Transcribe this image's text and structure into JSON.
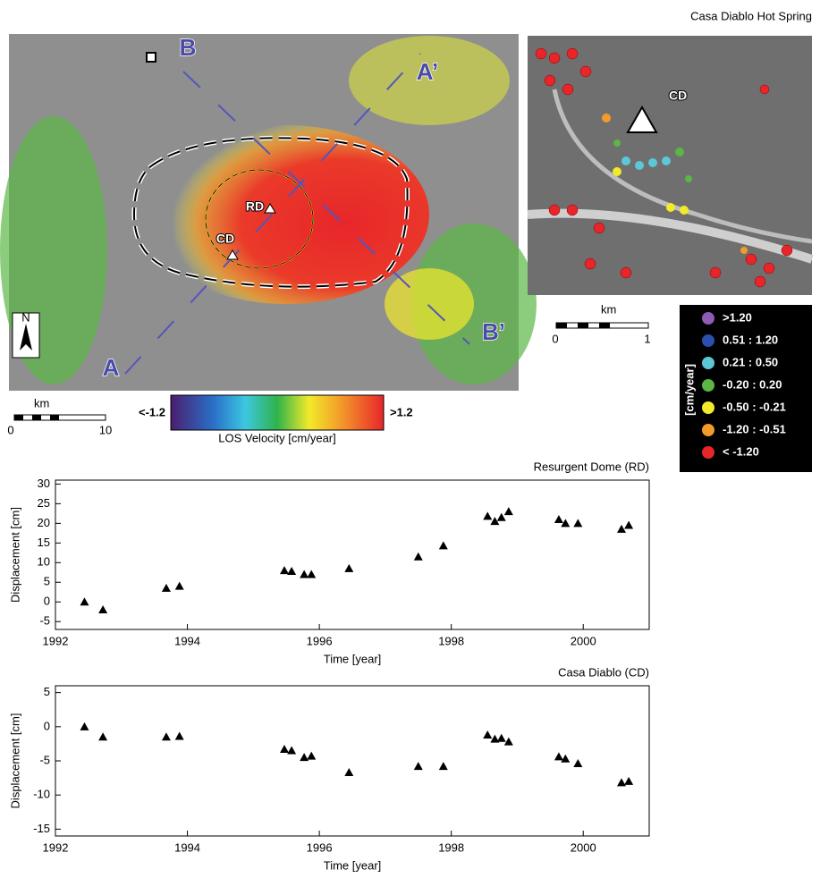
{
  "chart_data": [
    {
      "type": "scatter",
      "title": "Resurgent Dome (RD)",
      "x_label": "Time [year]",
      "y_label": "Displacement [cm]",
      "color": "#000000",
      "x": [
        1992.44,
        1992.72,
        1993.68,
        1993.88,
        1995.47,
        1995.58,
        1995.77,
        1995.88,
        1996.45,
        1997.5,
        1997.88,
        1998.55,
        1998.66,
        1998.76,
        1998.87,
        1999.63,
        1999.73,
        1999.92,
        2000.58,
        2000.69
      ],
      "values": [
        0,
        -2,
        3.5,
        4,
        8,
        7.8,
        7,
        7,
        8.5,
        11.5,
        14.3,
        21.8,
        20.5,
        21.5,
        23,
        21,
        20,
        20,
        18.5,
        19.5
      ],
      "xlim": [
        1992,
        2001
      ],
      "xticks": [
        1992,
        1994,
        1996,
        1998,
        2000
      ],
      "ylim": [
        -7,
        31
      ],
      "yticks": [
        -5,
        0,
        5,
        10,
        15,
        20,
        25,
        30
      ]
    },
    {
      "type": "scatter",
      "title": "Casa Diablo (CD)",
      "x_label": "Time [year]",
      "y_label": "Displacement [cm]",
      "color": "#000000",
      "x": [
        1992.44,
        1992.72,
        1993.68,
        1993.88,
        1995.47,
        1995.58,
        1995.77,
        1995.88,
        1996.45,
        1997.5,
        1997.88,
        1998.55,
        1998.66,
        1998.76,
        1998.87,
        1999.63,
        1999.73,
        1999.92,
        2000.58,
        2000.69
      ],
      "values": [
        0,
        -1.5,
        -1.5,
        -1.4,
        -3.3,
        -3.5,
        -4.5,
        -4.3,
        -6.7,
        -5.8,
        -5.8,
        -1.2,
        -1.8,
        -1.7,
        -2.2,
        -4.4,
        -4.7,
        -5.4,
        -8.2,
        -8.0
      ],
      "xlim": [
        1992,
        2001
      ],
      "xticks": [
        1992,
        1994,
        1996,
        1998,
        2000
      ],
      "ylim": [
        -16,
        6
      ],
      "yticks": [
        -15,
        -10,
        -5,
        0,
        5
      ]
    }
  ],
  "maps": {
    "title": "Casa Diablo Hot Spring",
    "labels": [
      "B",
      "A’",
      "A",
      "B’",
      "RD",
      "CD",
      "N",
      "CD"
    ],
    "scale_left": {
      "unit": "km",
      "min": "0",
      "max": "10"
    },
    "scale_right": {
      "unit": "km",
      "min": "0",
      "max": "1"
    },
    "colorbar": {
      "min": "<-1.2",
      "max": ">1.2",
      "label": "LOS Velocity [cm/year]"
    },
    "legend": {
      "unit": "[cm/year]",
      "items": [
        {
          "label": ">1.20",
          "color": "#8e5bb5"
        },
        {
          "label": "0.51 : 1.20",
          "color": "#2b4fb0"
        },
        {
          "label": "0.21 : 0.50",
          "color": "#5cc8d6"
        },
        {
          "label": "-0.20 : 0.20",
          "color": "#5bb646"
        },
        {
          "label": "-0.50 : -0.21",
          "color": "#f2ea2a"
        },
        {
          "label": "-1.20 : -0.51",
          "color": "#f39a2a"
        },
        {
          "label": "< -1.20",
          "color": "#e8262a"
        }
      ]
    }
  }
}
